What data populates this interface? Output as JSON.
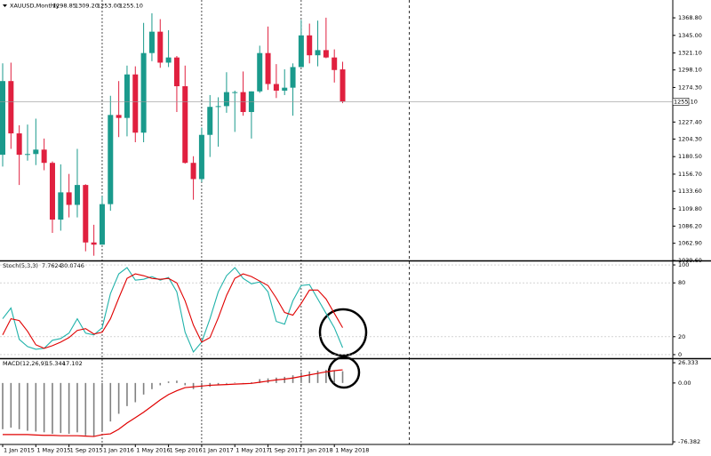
{
  "chart_data": [
    {
      "type": "candlestick",
      "title": "XAUUSD,Monthly",
      "ohlc_labels": [
        "1298.85",
        "1309.20",
        "1253.00",
        "1255.10"
      ],
      "last_price_label": "1255.10",
      "categories": [
        "1 Jan 2015",
        null,
        null,
        null,
        "1 May 2015",
        null,
        null,
        null,
        "1 Sep 2015",
        null,
        null,
        null,
        "1 Jan 2016",
        null,
        null,
        null,
        "1 May 2016",
        null,
        null,
        null,
        "1 Sep 2016",
        null,
        null,
        null,
        "1 Jan 2017",
        null,
        null,
        null,
        "1 May 2017",
        null,
        null,
        null,
        "1 Sep 2017",
        null,
        null,
        null,
        "1 Jan 2018",
        null,
        null,
        null,
        "1 May 2018",
        null
      ],
      "open": [
        1183,
        1283,
        1212,
        1183,
        1184,
        1190,
        1172,
        1095,
        1132,
        1115,
        1142,
        1064,
        1061,
        1116,
        1237,
        1233,
        1292,
        1213,
        1321,
        1350,
        1308,
        1315,
        1276,
        1172,
        1150,
        1210,
        1248,
        1249,
        1268,
        1268,
        1241,
        1269,
        1321,
        1279,
        1270,
        1274,
        1302,
        1345,
        1318,
        1325,
        1315,
        1298.85
      ],
      "high": [
        1307,
        1308,
        1223,
        1224,
        1232,
        1205,
        1174,
        1170,
        1157,
        1191,
        1143,
        1088,
        1127,
        1263,
        1283,
        1304,
        1303,
        1362,
        1375,
        1367,
        1352,
        1317,
        1304,
        1181,
        1220,
        1264,
        1261,
        1295,
        1270,
        1296,
        1269,
        1331,
        1357,
        1306,
        1299,
        1307,
        1366,
        1361,
        1365,
        1369,
        1326,
        1309.2
      ],
      "low": [
        1167,
        1191,
        1142,
        1175,
        1169,
        1162,
        1077,
        1080,
        1098,
        1098,
        1052,
        1046,
        1061,
        1107,
        1207,
        1208,
        1200,
        1200,
        1310,
        1301,
        1302,
        1241,
        1171,
        1122,
        1146,
        1180,
        1194,
        1240,
        1214,
        1236,
        1205,
        1267,
        1271,
        1260,
        1264,
        1236,
        1302,
        1307,
        1303,
        1314,
        1281,
        1253
      ],
      "close": [
        1283,
        1212,
        1183,
        1184,
        1190,
        1172,
        1095,
        1132,
        1115,
        1142,
        1064,
        1061,
        1116,
        1237,
        1233,
        1292,
        1213,
        1321,
        1350,
        1308,
        1315,
        1276,
        1172,
        1150,
        1210,
        1248,
        1249,
        1268,
        1268,
        1241,
        1269,
        1321,
        1279,
        1270,
        1274,
        1302,
        1345,
        1318,
        1325,
        1315,
        1298,
        1255.1
      ],
      "up_color": "#1a9a8c",
      "down_color": "#e0203f",
      "ylim": [
        1039.6,
        1393
      ],
      "yticks": [
        {
          "value": 1368.8,
          "label": "1368.80"
        },
        {
          "value": 1345,
          "label": "1345.00"
        },
        {
          "value": 1321.1,
          "label": "1321.10"
        },
        {
          "value": 1298.1,
          "label": "1298.10"
        },
        {
          "value": 1274.3,
          "label": "1274.30"
        },
        {
          "value": 1227.4,
          "label": "1227.40"
        },
        {
          "value": 1204.3,
          "label": "1204.30"
        },
        {
          "value": 1180.5,
          "label": "1180.50"
        },
        {
          "value": 1156.7,
          "label": "1156.70"
        },
        {
          "value": 1133.6,
          "label": "1133.60"
        },
        {
          "value": 1109.8,
          "label": "1109.80"
        },
        {
          "value": 1086.2,
          "label": "1086.20"
        },
        {
          "value": 1062.9,
          "label": "1062.90"
        },
        {
          "value": 1039.6,
          "label": "1039.60"
        }
      ]
    },
    {
      "type": "line",
      "title": "Stoch(5,3,3)",
      "series": [
        {
          "color": "#20b2aa",
          "values": [
            40,
            52,
            17,
            9,
            6,
            7,
            16,
            18,
            24,
            40,
            24,
            22,
            30,
            68,
            90,
            97,
            83,
            84,
            87,
            83,
            86,
            70,
            25,
            3,
            14,
            40,
            70,
            88,
            97,
            85,
            79,
            81,
            70,
            37,
            34,
            60,
            77,
            78,
            62,
            46,
            30,
            7.7624
          ]
        },
        {
          "color": "#e00000",
          "values": [
            22,
            40,
            38,
            26,
            11,
            7,
            10,
            14,
            19,
            27,
            29,
            23,
            25,
            40,
            63,
            85,
            90,
            88,
            85,
            84,
            85,
            80,
            60,
            33,
            14,
            19,
            41,
            66,
            85,
            90,
            87,
            82,
            77,
            63,
            47,
            44,
            57,
            72,
            72,
            62,
            46,
            30.0746
          ]
        }
      ],
      "ylim": [
        -4,
        104
      ],
      "yticks": [
        100,
        80,
        20,
        0
      ],
      "grid": true
    },
    {
      "type": "combo",
      "title": "MACD(12,26,9)",
      "series": [
        {
          "type": "bar",
          "color": "#808080",
          "values": [
            -60,
            -58,
            -60,
            -62,
            -63,
            -64,
            -66,
            -65,
            -66,
            -64,
            -68,
            -70,
            -62,
            -50,
            -40,
            -30,
            -25,
            -15,
            -8,
            -3,
            2,
            3,
            -3,
            -8,
            -7,
            -5,
            -3,
            -1,
            0.5,
            0,
            1,
            5,
            6,
            7,
            8,
            10,
            14,
            15,
            16,
            17,
            16,
            15.344
          ]
        },
        {
          "type": "line",
          "color": "#e00000",
          "values": [
            -67,
            -67,
            -67,
            -67,
            -67.5,
            -68,
            -68,
            -68.5,
            -68.5,
            -68.5,
            -69,
            -69.5,
            -67,
            -66,
            -60,
            -52,
            -45,
            -38,
            -30,
            -22,
            -15,
            -10,
            -6,
            -5,
            -4,
            -3,
            -2.5,
            -2,
            -1.5,
            -1,
            -0.5,
            1,
            2.5,
            4,
            5,
            6.5,
            8.5,
            10.5,
            12.5,
            14.5,
            16,
            17.102
          ]
        }
      ],
      "ylim": [
        -79.8,
        31
      ],
      "yticks": [
        26.333,
        {
          "value": 0,
          "label": "0.00"
        },
        -76.382
      ]
    }
  ]
}
